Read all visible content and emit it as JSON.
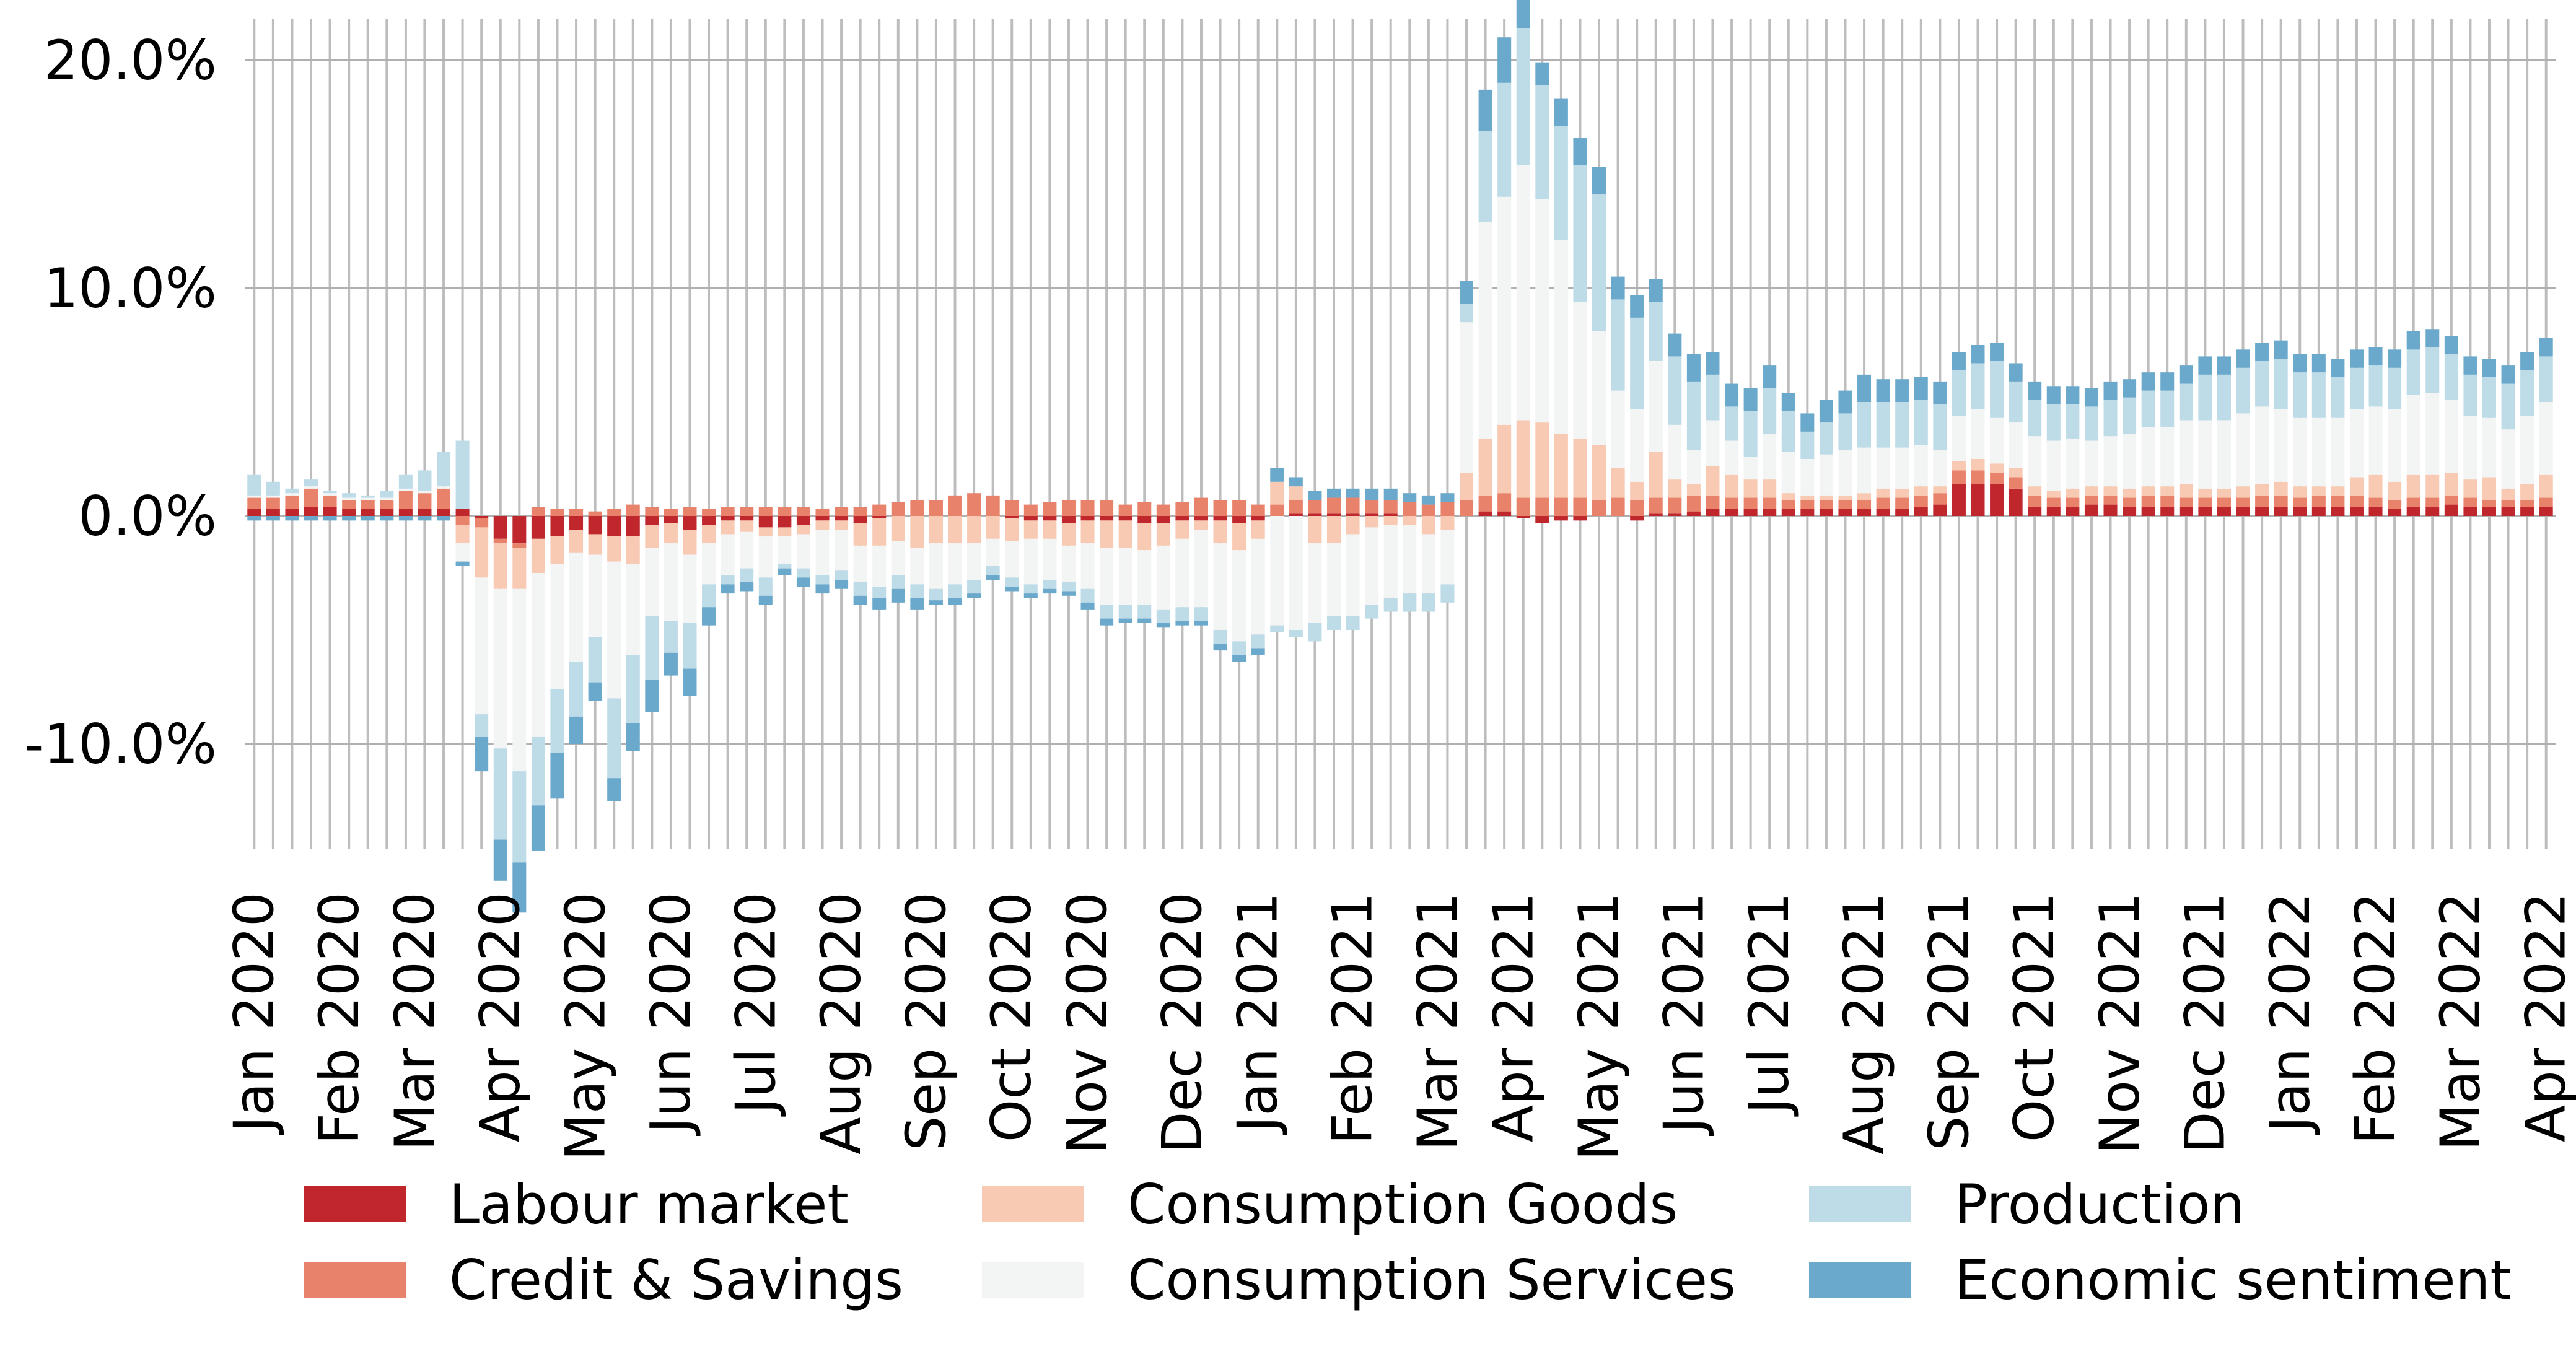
{
  "chart_data": {
    "type": "bar",
    "stacked": true,
    "grid": true,
    "legend_position": "bottom",
    "ylim": [
      -0.16,
      0.22
    ],
    "yticks": [
      0.2,
      0.1,
      0.0,
      -0.1
    ],
    "ytick_labels": [
      "20.0%",
      "10.0%",
      "0.0%",
      "-10.0%"
    ],
    "x_tick_labels": [
      "Jan 2020",
      "Feb 2020",
      "Mar 2020",
      "Apr 2020",
      "May 2020",
      "Jun 2020",
      "Jul 2020",
      "Aug 2020",
      "Sep 2020",
      "Oct 2020",
      "Nov 2020",
      "Dec 2020",
      "Jan 2021",
      "Feb 2021",
      "Mar 2021",
      "Apr 2021",
      "May 2021",
      "Jun 2021",
      "Jul 2021",
      "Aug 2021",
      "Sep 2021",
      "Oct 2021",
      "Nov 2021",
      "Dec 2021",
      "Jan 2022",
      "Feb 2022",
      "Mar 2022",
      "Apr 2022"
    ],
    "x_tick_positions": [
      0,
      4.5,
      8.5,
      13,
      17.5,
      22,
      26.5,
      31,
      35.5,
      40,
      44,
      49,
      53,
      58,
      62.5,
      66.5,
      71,
      75.5,
      80,
      85,
      89.5,
      94,
      98.5,
      103,
      107.5,
      112,
      116.5,
      121
    ],
    "n_bars": 122,
    "series": [
      {
        "name": "Labour market",
        "color": "#c0272d"
      },
      {
        "name": "Credit & Savings",
        "color": "#e9826a"
      },
      {
        "name": "Consumption Goods",
        "color": "#f8c9b3"
      },
      {
        "name": "Consumption Services",
        "color": "#f3f4f4"
      },
      {
        "name": "Production",
        "color": "#bedbe8"
      },
      {
        "name": "Economic sentiment",
        "color": "#6aa9cb"
      }
    ],
    "series_values": [
      [
        0.003,
        0.003,
        0.003,
        0.004,
        0.004,
        0.003,
        0.003,
        0.003,
        0.003,
        0.003,
        0.003,
        0.003,
        -0.001,
        -0.01,
        -0.012,
        -0.01,
        -0.009,
        -0.006,
        -0.008,
        -0.009,
        -0.009,
        -0.004,
        -0.003,
        -0.006,
        -0.004,
        -0.002,
        -0.002,
        -0.005,
        -0.005,
        -0.004,
        -0.002,
        -0.002,
        -0.003,
        -0.001,
        0.0,
        0.0,
        0.0,
        0.0,
        0.0,
        0.0,
        -0.001,
        -0.002,
        -0.002,
        -0.003,
        -0.002,
        -0.002,
        -0.002,
        -0.003,
        -0.003,
        -0.002,
        -0.002,
        -0.002,
        -0.003,
        -0.002,
        0.0,
        0.001,
        0.001,
        0.001,
        0.001,
        0.001,
        0.001,
        0.0,
        0.0,
        0.0,
        0.0,
        0.002,
        0.002,
        -0.001,
        -0.003,
        -0.002,
        -0.002,
        0.0,
        0.0,
        -0.002,
        0.001,
        0.001,
        0.002,
        0.003,
        0.003,
        0.003,
        0.003,
        0.003,
        0.003,
        0.003,
        0.003,
        0.003,
        0.003,
        0.003,
        0.004,
        0.005,
        0.014,
        0.014,
        0.014,
        0.012,
        0.004,
        0.004,
        0.004,
        0.005,
        0.005,
        0.004,
        0.004,
        0.004,
        0.004,
        0.004,
        0.004,
        0.004,
        0.004,
        0.004,
        0.004,
        0.004,
        0.004,
        0.004,
        0.004,
        0.003,
        0.004,
        0.004,
        0.005,
        0.004,
        0.004,
        0.004,
        0.004,
        0.004
      ],
      [
        0.005,
        0.005,
        0.006,
        0.008,
        0.005,
        0.004,
        0.004,
        0.004,
        0.008,
        0.007,
        0.009,
        -0.004,
        -0.004,
        -0.002,
        -0.002,
        0.004,
        0.003,
        0.003,
        0.002,
        0.003,
        0.005,
        0.004,
        0.003,
        0.004,
        0.003,
        0.004,
        0.004,
        0.004,
        0.004,
        0.004,
        0.003,
        0.004,
        0.004,
        0.005,
        0.006,
        0.007,
        0.007,
        0.009,
        0.01,
        0.009,
        0.007,
        0.005,
        0.006,
        0.007,
        0.007,
        0.007,
        0.005,
        0.006,
        0.005,
        0.006,
        0.008,
        0.007,
        0.007,
        0.005,
        0.005,
        0.006,
        0.006,
        0.007,
        0.007,
        0.006,
        0.006,
        0.006,
        0.005,
        0.006,
        0.007,
        0.007,
        0.008,
        0.008,
        0.008,
        0.008,
        0.008,
        0.007,
        0.008,
        0.007,
        0.007,
        0.007,
        0.007,
        0.006,
        0.005,
        0.005,
        0.005,
        0.004,
        0.004,
        0.004,
        0.004,
        0.004,
        0.005,
        0.005,
        0.005,
        0.005,
        0.006,
        0.006,
        0.005,
        0.005,
        0.005,
        0.004,
        0.004,
        0.004,
        0.004,
        0.004,
        0.005,
        0.005,
        0.004,
        0.004,
        0.004,
        0.004,
        0.005,
        0.005,
        0.004,
        0.005,
        0.005,
        0.005,
        0.004,
        0.004,
        0.004,
        0.004,
        0.004,
        0.004,
        0.003,
        0.003,
        0.003,
        0.004
      ],
      [
        0.0,
        0.0,
        0.0,
        0.0,
        0.0,
        0.0,
        0.0,
        0.0,
        0.0,
        0.0,
        0.0,
        -0.008,
        -0.022,
        -0.02,
        -0.018,
        -0.015,
        -0.012,
        -0.01,
        -0.009,
        -0.011,
        -0.012,
        -0.01,
        -0.009,
        -0.011,
        -0.008,
        -0.006,
        -0.005,
        -0.004,
        -0.004,
        -0.004,
        -0.004,
        -0.004,
        -0.01,
        -0.012,
        -0.011,
        -0.014,
        -0.012,
        -0.012,
        -0.012,
        -0.01,
        -0.01,
        -0.008,
        -0.008,
        -0.01,
        -0.01,
        -0.012,
        -0.012,
        -0.012,
        -0.01,
        -0.008,
        -0.004,
        -0.01,
        -0.012,
        -0.008,
        0.01,
        0.006,
        -0.012,
        -0.012,
        -0.008,
        -0.005,
        -0.004,
        -0.004,
        -0.008,
        -0.006,
        0.012,
        0.025,
        0.03,
        0.034,
        0.033,
        0.028,
        0.026,
        0.024,
        0.013,
        0.008,
        0.02,
        0.008,
        0.005,
        0.013,
        0.01,
        0.008,
        0.008,
        0.003,
        0.002,
        0.002,
        0.002,
        0.003,
        0.004,
        0.004,
        0.004,
        0.003,
        0.004,
        0.005,
        0.004,
        0.004,
        0.004,
        0.003,
        0.004,
        0.004,
        0.004,
        0.004,
        0.004,
        0.004,
        0.006,
        0.004,
        0.004,
        0.005,
        0.005,
        0.006,
        0.005,
        0.004,
        0.004,
        0.008,
        0.01,
        0.008,
        0.01,
        0.01,
        0.01,
        0.008,
        0.01,
        0.005,
        0.007,
        0.01
      ],
      [
        0.001,
        0.001,
        0.001,
        0.001,
        0.001,
        0.001,
        0.001,
        0.001,
        0.001,
        0.001,
        0.001,
        -0.008,
        -0.06,
        -0.07,
        -0.08,
        -0.072,
        -0.055,
        -0.048,
        -0.036,
        -0.06,
        -0.04,
        -0.03,
        -0.034,
        -0.03,
        -0.018,
        -0.018,
        -0.016,
        -0.018,
        -0.012,
        -0.015,
        -0.02,
        -0.018,
        -0.016,
        -0.018,
        -0.015,
        -0.016,
        -0.02,
        -0.018,
        -0.016,
        -0.012,
        -0.016,
        -0.02,
        -0.018,
        -0.016,
        -0.02,
        -0.025,
        -0.025,
        -0.024,
        -0.028,
        -0.03,
        -0.034,
        -0.038,
        -0.04,
        -0.042,
        -0.048,
        -0.05,
        -0.035,
        -0.032,
        -0.036,
        -0.034,
        -0.032,
        -0.03,
        -0.026,
        -0.024,
        0.066,
        0.095,
        0.1,
        0.112,
        0.098,
        0.085,
        0.06,
        0.05,
        0.034,
        0.032,
        0.04,
        0.024,
        0.015,
        0.02,
        0.015,
        0.01,
        0.02,
        0.018,
        0.016,
        0.018,
        0.02,
        0.02,
        0.018,
        0.018,
        0.018,
        0.016,
        0.02,
        0.022,
        0.02,
        0.02,
        0.022,
        0.022,
        0.022,
        0.02,
        0.022,
        0.024,
        0.026,
        0.026,
        0.028,
        0.03,
        0.03,
        0.032,
        0.034,
        0.032,
        0.03,
        0.03,
        0.03,
        0.03,
        0.03,
        0.032,
        0.035,
        0.036,
        0.032,
        0.028,
        0.026,
        0.026,
        0.03,
        0.032
      ],
      [
        0.009,
        0.006,
        0.002,
        0.003,
        0.001,
        0.002,
        0.001,
        0.003,
        0.006,
        0.009,
        0.015,
        0.03,
        -0.01,
        -0.04,
        -0.04,
        -0.03,
        -0.028,
        -0.024,
        -0.02,
        -0.035,
        -0.03,
        -0.028,
        -0.014,
        -0.02,
        -0.01,
        -0.004,
        -0.006,
        -0.008,
        -0.002,
        -0.004,
        -0.004,
        -0.004,
        -0.006,
        -0.005,
        -0.006,
        -0.006,
        -0.005,
        -0.006,
        -0.006,
        -0.004,
        -0.004,
        -0.004,
        -0.004,
        -0.004,
        -0.006,
        -0.006,
        -0.006,
        -0.006,
        -0.006,
        -0.006,
        -0.006,
        -0.006,
        -0.006,
        -0.006,
        -0.003,
        -0.003,
        -0.008,
        -0.006,
        -0.006,
        -0.006,
        -0.006,
        -0.008,
        -0.008,
        -0.008,
        0.008,
        0.04,
        0.05,
        0.06,
        0.05,
        0.05,
        0.06,
        0.06,
        0.04,
        0.04,
        0.026,
        0.03,
        0.03,
        0.02,
        0.015,
        0.02,
        0.02,
        0.018,
        0.012,
        0.014,
        0.016,
        0.02,
        0.02,
        0.02,
        0.02,
        0.02,
        0.02,
        0.02,
        0.025,
        0.018,
        0.016,
        0.016,
        0.015,
        0.015,
        0.016,
        0.016,
        0.016,
        0.016,
        0.016,
        0.02,
        0.02,
        0.02,
        0.02,
        0.022,
        0.02,
        0.02,
        0.018,
        0.018,
        0.018,
        0.018,
        0.02,
        0.02,
        0.02,
        0.018,
        0.018,
        0.02,
        0.02,
        0.02
      ],
      [
        -0.002,
        -0.002,
        -0.002,
        -0.002,
        -0.002,
        -0.002,
        -0.002,
        -0.002,
        -0.002,
        -0.002,
        -0.002,
        -0.002,
        -0.015,
        -0.018,
        -0.022,
        -0.02,
        -0.02,
        -0.012,
        -0.008,
        -0.01,
        -0.012,
        -0.014,
        -0.01,
        -0.012,
        -0.008,
        -0.004,
        -0.004,
        -0.004,
        -0.003,
        -0.004,
        -0.004,
        -0.004,
        -0.004,
        -0.005,
        -0.006,
        -0.005,
        -0.002,
        -0.003,
        -0.002,
        -0.002,
        -0.002,
        -0.002,
        -0.002,
        -0.002,
        -0.003,
        -0.003,
        -0.002,
        -0.002,
        -0.002,
        -0.002,
        -0.002,
        -0.003,
        -0.003,
        -0.003,
        0.006,
        0.004,
        0.004,
        0.004,
        0.004,
        0.005,
        0.005,
        0.004,
        0.004,
        0.004,
        0.01,
        0.018,
        0.02,
        0.016,
        0.01,
        0.012,
        0.012,
        0.012,
        0.01,
        0.01,
        0.01,
        0.01,
        0.012,
        0.01,
        0.01,
        0.01,
        0.01,
        0.008,
        0.008,
        0.01,
        0.01,
        0.012,
        0.01,
        0.01,
        0.01,
        0.01,
        0.008,
        0.008,
        0.008,
        0.008,
        0.008,
        0.008,
        0.008,
        0.008,
        0.008,
        0.008,
        0.008,
        0.008,
        0.008,
        0.008,
        0.008,
        0.008,
        0.008,
        0.008,
        0.008,
        0.008,
        0.008,
        0.008,
        0.008,
        0.008,
        0.008,
        0.008,
        0.008,
        0.008,
        0.008,
        0.008,
        0.008,
        0.008
      ]
    ],
    "title": "",
    "xlabel": "",
    "ylabel": ""
  }
}
